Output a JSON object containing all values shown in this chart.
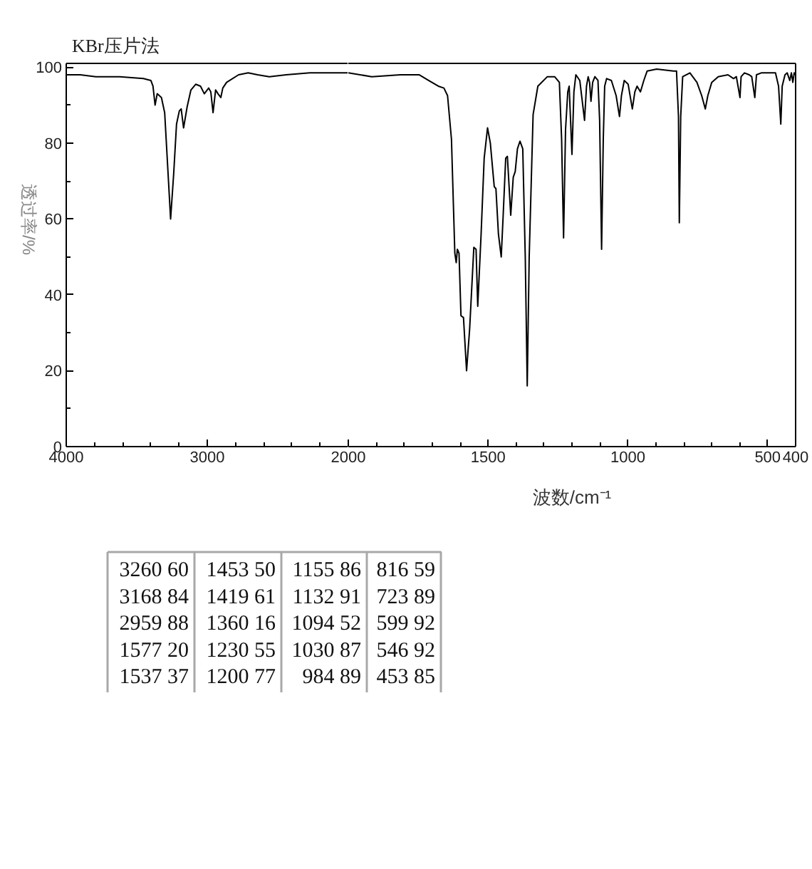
{
  "chart_data": [
    {
      "type": "line",
      "title": "KBr压片法",
      "ylabel": "透过率/%",
      "series": [
        {
          "color": "#000000",
          "x": [
            4000,
            3900,
            3790,
            3620,
            3453,
            3400,
            3385,
            3370,
            3355,
            3325,
            3302,
            3278,
            3260,
            3238,
            3218,
            3198,
            3185,
            3168,
            3143,
            3116,
            3082,
            3048,
            3021,
            2990,
            2975,
            2959,
            2941,
            2924,
            2904,
            2890,
            2863,
            2778,
            2710,
            2643,
            2560,
            2441,
            2273,
            2105,
            2000
          ],
          "values": [
            98,
            98,
            97.5,
            97.5,
            97,
            96.5,
            95,
            90,
            93,
            92,
            88,
            72,
            60,
            72,
            85,
            88.5,
            89,
            84,
            89.5,
            94,
            95.5,
            95,
            93,
            94.5,
            93.5,
            88,
            94,
            93,
            92,
            94.5,
            96,
            98,
            98.5,
            98,
            97.5,
            98,
            98.5,
            98.5,
            98.5
          ]
        }
      ],
      "xlim": [
        4000,
        2000
      ],
      "ylim": [
        0,
        101
      ],
      "xticks": [
        4000,
        {
          "value": 3800,
          "label": null
        },
        {
          "value": 3600,
          "label": null
        },
        {
          "value": 3400,
          "label": null
        },
        {
          "value": 3200,
          "label": null
        },
        3000,
        {
          "value": 2800,
          "label": null
        },
        {
          "value": 2600,
          "label": null
        },
        {
          "value": 2400,
          "label": null
        },
        {
          "value": 2200,
          "label": null
        },
        {
          "value": 2000,
          "label": null
        }
      ],
      "yticks": [
        0,
        {
          "value": 10,
          "label": null
        },
        20,
        {
          "value": 30,
          "label": null
        },
        40,
        {
          "value": 50,
          "label": null
        },
        60,
        {
          "value": 70,
          "label": null
        },
        80,
        {
          "value": 90,
          "label": null
        },
        100
      ],
      "grid": false,
      "line_style": "solid"
    },
    {
      "type": "line",
      "xlabel": "波数/cm⁻¹",
      "series": [
        {
          "color": "#000000",
          "x": [
            2000,
            1916,
            1814,
            1747,
            1713,
            1678,
            1658,
            1645,
            1631,
            1619,
            1614,
            1610,
            1604,
            1597,
            1588,
            1577,
            1566,
            1551,
            1543,
            1537,
            1525,
            1514,
            1502,
            1492,
            1478,
            1472,
            1463,
            1453,
            1446,
            1437,
            1431,
            1419,
            1410,
            1403,
            1395,
            1386,
            1376,
            1367,
            1360,
            1353,
            1339,
            1322,
            1288,
            1262,
            1245,
            1237,
            1230,
            1223,
            1215,
            1210,
            1200,
            1193,
            1186,
            1172,
            1155,
            1148,
            1142,
            1137,
            1132,
            1126,
            1118,
            1107,
            1101,
            1094,
            1088,
            1083,
            1076,
            1059,
            1042,
            1030,
            1023,
            1013,
            999,
            984,
            975,
            967,
            955,
            943,
            931,
            897,
            837,
            826,
            819,
            816,
            811,
            804,
            778,
            753,
            736,
            723,
            714,
            700,
            677,
            642,
            622,
            612,
            599,
            595,
            583,
            566,
            557,
            546,
            540,
            523,
            506,
            489,
            472,
            461,
            453,
            448,
            438,
            430,
            421,
            415,
            410,
            405,
            400
          ],
          "values": [
            98.5,
            97.5,
            98,
            98,
            96.5,
            95,
            94.5,
            92.5,
            81,
            51,
            48.5,
            52,
            51,
            34.5,
            34,
            20,
            31,
            52.5,
            52,
            37,
            56,
            76,
            84,
            80,
            68.5,
            68,
            56,
            50,
            61,
            76,
            76.5,
            61,
            71,
            72.5,
            78.5,
            80.5,
            78.5,
            50,
            16,
            50,
            87.5,
            95,
            97.5,
            97.5,
            96,
            81,
            55,
            83.5,
            93.5,
            95,
            77,
            93.5,
            98,
            96.5,
            86,
            95,
            97.5,
            96,
            91,
            96,
            97.5,
            96.5,
            86,
            52,
            81,
            95,
            97,
            96.5,
            92.5,
            87,
            92.5,
            96.5,
            95.5,
            89,
            93.5,
            95,
            93.5,
            96.5,
            99,
            99.5,
            99,
            99,
            87,
            59,
            87,
            97.5,
            98.5,
            96,
            92.5,
            89,
            92.5,
            96,
            97.5,
            98,
            97,
            97.5,
            92,
            97.5,
            98.5,
            98,
            97.5,
            92,
            98,
            98.5,
            98.5,
            98.5,
            98.5,
            95,
            85,
            95,
            98,
            98.5,
            96.5,
            98.5,
            96,
            98.5,
            98
          ]
        }
      ],
      "xlim": [
        2000,
        400
      ],
      "ylim": [
        0,
        101
      ],
      "xticks": [
        2000,
        {
          "value": 1900,
          "label": null
        },
        {
          "value": 1800,
          "label": null
        },
        {
          "value": 1700,
          "label": null
        },
        {
          "value": 1600,
          "label": null
        },
        1500,
        {
          "value": 1400,
          "label": null
        },
        {
          "value": 1300,
          "label": null
        },
        {
          "value": 1200,
          "label": null
        },
        {
          "value": 1100,
          "label": null
        },
        1000,
        {
          "value": 900,
          "label": null
        },
        {
          "value": 800,
          "label": null
        },
        {
          "value": 700,
          "label": null
        },
        {
          "value": 600,
          "label": null
        },
        500,
        400
      ],
      "tick_labels": "x",
      "grid": false,
      "line_style": "solid"
    },
    {
      "type": "other",
      "annotations": [
        "3260 60",
        "3168 84",
        "2959 88",
        "1577 20",
        "1537 37",
        "1453 50",
        "1419 61",
        "1360 16",
        "1230 55",
        "1200 77",
        "1155 86",
        "1132 91",
        "1094 52",
        "1030 87",
        "984 89",
        "816 59",
        "723 89",
        "599 92",
        "546 92",
        "453 85"
      ]
    }
  ]
}
